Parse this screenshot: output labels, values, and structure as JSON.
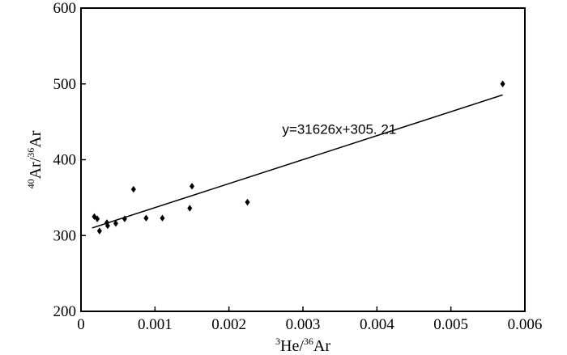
{
  "chart_data": {
    "type": "scatter",
    "xlim": [
      0,
      0.006
    ],
    "ylim": [
      200,
      600
    ],
    "x_ticks": [
      {
        "value": 0,
        "label": "0"
      },
      {
        "value": 0.001,
        "label": "0.001"
      },
      {
        "value": 0.002,
        "label": "0.002"
      },
      {
        "value": 0.003,
        "label": "0.003"
      },
      {
        "value": 0.004,
        "label": "0.004"
      },
      {
        "value": 0.005,
        "label": "0.005"
      },
      {
        "value": 0.006,
        "label": "0.006"
      }
    ],
    "y_ticks": [
      {
        "value": 200,
        "label": "200"
      },
      {
        "value": 300,
        "label": "300"
      },
      {
        "value": 400,
        "label": "400"
      },
      {
        "value": 500,
        "label": "500"
      },
      {
        "value": 600,
        "label": "600"
      }
    ],
    "xlabel": {
      "sup1": "3",
      "main1": "He/",
      "sup2": "36",
      "main2": "Ar"
    },
    "ylabel": {
      "sup1": "40",
      "main1": "Ar/",
      "sup2": "36",
      "main2": "Ar"
    },
    "grid": false,
    "marker_color": "#000000",
    "points": [
      {
        "x": 0.00018,
        "y": 325
      },
      {
        "x": 0.00022,
        "y": 322
      },
      {
        "x": 0.00025,
        "y": 306
      },
      {
        "x": 0.00035,
        "y": 317
      },
      {
        "x": 0.00036,
        "y": 313
      },
      {
        "x": 0.00047,
        "y": 316
      },
      {
        "x": 0.00059,
        "y": 322
      },
      {
        "x": 0.00071,
        "y": 361
      },
      {
        "x": 0.00088,
        "y": 323
      },
      {
        "x": 0.0011,
        "y": 323
      },
      {
        "x": 0.00147,
        "y": 336
      },
      {
        "x": 0.0015,
        "y": 365
      },
      {
        "x": 0.00225,
        "y": 344
      },
      {
        "x": 0.0057,
        "y": 500
      }
    ],
    "trendline": {
      "slope": 31626,
      "intercept": 305.21,
      "x_start": 0.00015,
      "x_end": 0.0057,
      "equation": "y=31626x+305. 21"
    }
  }
}
